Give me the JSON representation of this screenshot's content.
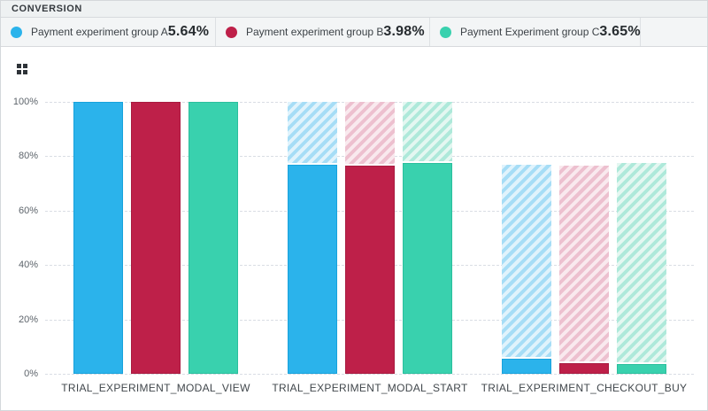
{
  "header": {
    "title": "CONVERSION"
  },
  "legend": {
    "items": [
      {
        "label": "Payment experiment group A",
        "value": "5.64%",
        "color": "#2bb3eb"
      },
      {
        "label": "Payment experiment group B",
        "value": "3.98%",
        "color": "#be2049"
      },
      {
        "label": "Payment Experiment group C",
        "value": "3.65%",
        "color": "#39d1ae"
      }
    ]
  },
  "chart_data": {
    "type": "bar",
    "subtype": "funnel-steps",
    "title": "CONVERSION",
    "categories": [
      "TRIAL_EXPERIMENT_MODAL_VIEW",
      "TRIAL_EXPERIMENT_MODAL_START",
      "TRIAL_EXPERIMENT_CHECKOUT_BUY"
    ],
    "series": [
      {
        "name": "Payment experiment group A",
        "color": "#2bb3eb",
        "border_color": "#17a2dc",
        "hatch_stripe": "#a6ddf6",
        "hatch_bg": "#e0f3fc",
        "values": [
          100,
          77,
          5.64
        ],
        "hatch_tops": [
          100,
          100,
          77
        ]
      },
      {
        "name": "Payment experiment group B",
        "color": "#be2049",
        "border_color": "#a81b40",
        "hatch_stripe": "#edc0cf",
        "hatch_bg": "#f9e9ee",
        "values": [
          100,
          76.5,
          3.98
        ],
        "hatch_tops": [
          100,
          100,
          76.5
        ]
      },
      {
        "name": "Payment Experiment group C",
        "color": "#39d1ae",
        "border_color": "#2bbf9d",
        "hatch_stripe": "#aee9da",
        "hatch_bg": "#e4f7f1",
        "values": [
          100,
          77.5,
          3.65
        ],
        "hatch_tops": [
          100,
          100,
          77.5
        ]
      }
    ],
    "xlabel": "",
    "ylabel": "",
    "yticks": [
      "0%",
      "20%",
      "40%",
      "60%",
      "80%",
      "100%"
    ],
    "ytick_values": [
      0,
      20,
      40,
      60,
      80,
      100
    ],
    "ylim": [
      0,
      100
    ],
    "grid": "horizontal-dashed",
    "legend_position": "top"
  }
}
